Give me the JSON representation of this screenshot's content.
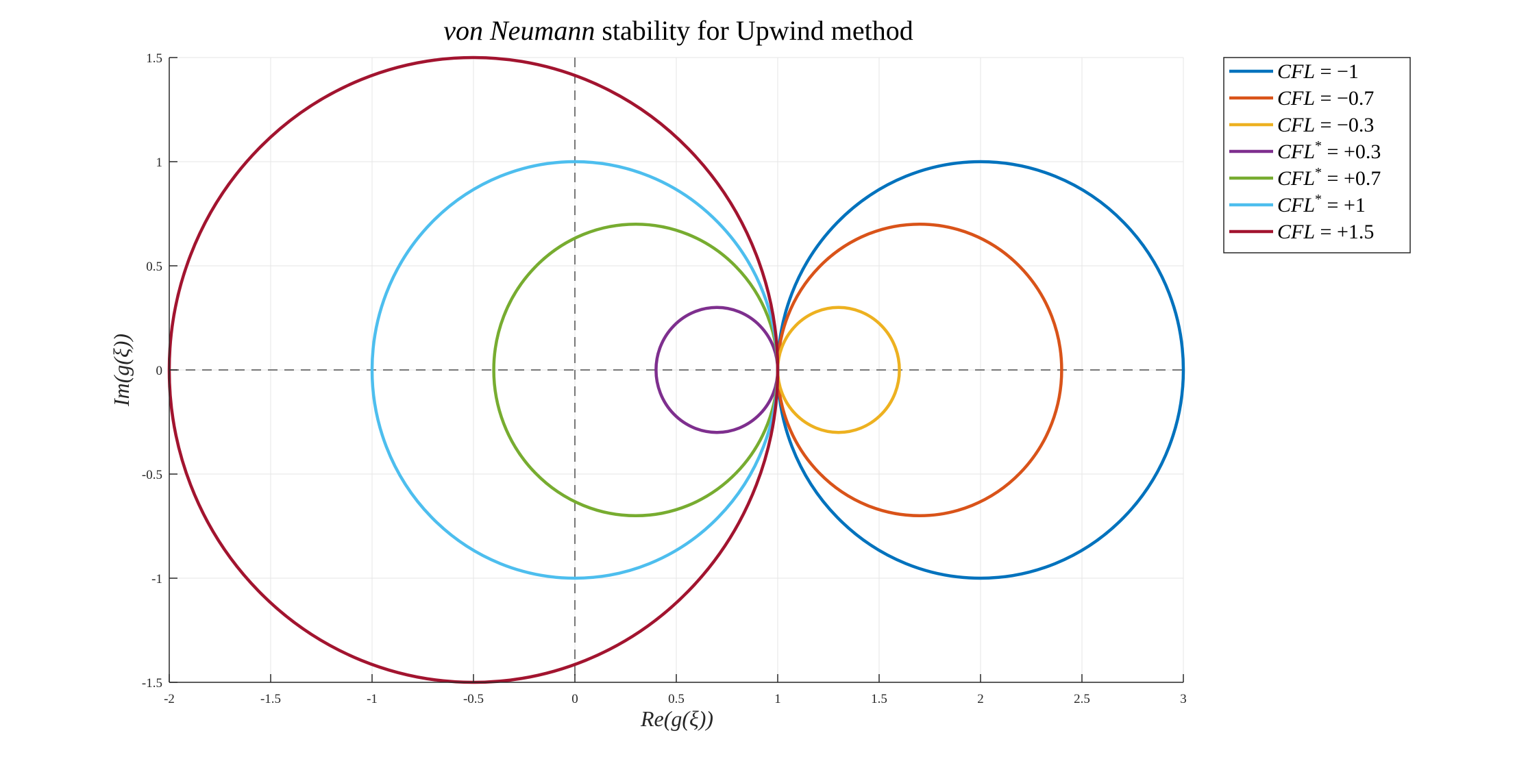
{
  "chart_data": {
    "type": "line",
    "title": "von Neumann stability for Upwind method",
    "title_italic_part": "von Neumann",
    "title_rest": " stability for Upwind method",
    "xlabel": "Re(g(ξ))",
    "ylabel": "Im(g(ξ))",
    "xlim": [
      -2,
      3
    ],
    "ylim": [
      -1.5,
      1.5
    ],
    "xticks": [
      -2,
      -1.5,
      -1,
      -0.5,
      0,
      0.5,
      1,
      1.5,
      2,
      2.5,
      3
    ],
    "xtick_labels": [
      "-2",
      "-1.5",
      "-1",
      "-0.5",
      "0",
      "0.5",
      "1",
      "1.5",
      "2",
      "2.5",
      "3"
    ],
    "yticks": [
      -1.5,
      -1,
      -0.5,
      0,
      0.5,
      1,
      1.5
    ],
    "ytick_labels": [
      "-1.5",
      "-1",
      "-0.5",
      "0",
      "0.5",
      "1",
      "1.5"
    ],
    "grid": true,
    "reference_lines": [
      {
        "orientation": "horizontal",
        "value": 0,
        "style": "dashed"
      },
      {
        "orientation": "vertical",
        "value": 0,
        "style": "dashed"
      }
    ],
    "legend_position": "outside-top-right",
    "series": [
      {
        "name": "CFL = −1",
        "label_var": "CFL",
        "label_star": false,
        "label_value": " = −1",
        "center": [
          2,
          0
        ],
        "radius": 1,
        "color": "#0072BD"
      },
      {
        "name": "CFL = −0.7",
        "label_var": "CFL",
        "label_star": false,
        "label_value": " = −0.7",
        "center": [
          1.7,
          0
        ],
        "radius": 0.7,
        "color": "#D95319"
      },
      {
        "name": "CFL = −0.3",
        "label_var": "CFL",
        "label_star": false,
        "label_value": " = −0.3",
        "center": [
          1.3,
          0
        ],
        "radius": 0.3,
        "color": "#EDB120"
      },
      {
        "name": "CFL* = +0.3",
        "label_var": "CFL",
        "label_star": true,
        "label_value": " = +0.3",
        "center": [
          0.7,
          0
        ],
        "radius": 0.3,
        "color": "#7E2F8E"
      },
      {
        "name": "CFL* = +0.7",
        "label_var": "CFL",
        "label_star": true,
        "label_value": " = +0.7",
        "center": [
          0.3,
          0
        ],
        "radius": 0.7,
        "color": "#77AC30"
      },
      {
        "name": "CFL* = +1",
        "label_var": "CFL",
        "label_star": true,
        "label_value": " = +1",
        "center": [
          0,
          0
        ],
        "radius": 1,
        "color": "#4DBEEE"
      },
      {
        "name": "CFL = +1.5",
        "label_var": "CFL",
        "label_star": false,
        "label_value": " = +1.5",
        "center": [
          -0.5,
          0
        ],
        "radius": 1.5,
        "color": "#A2142F"
      }
    ]
  }
}
